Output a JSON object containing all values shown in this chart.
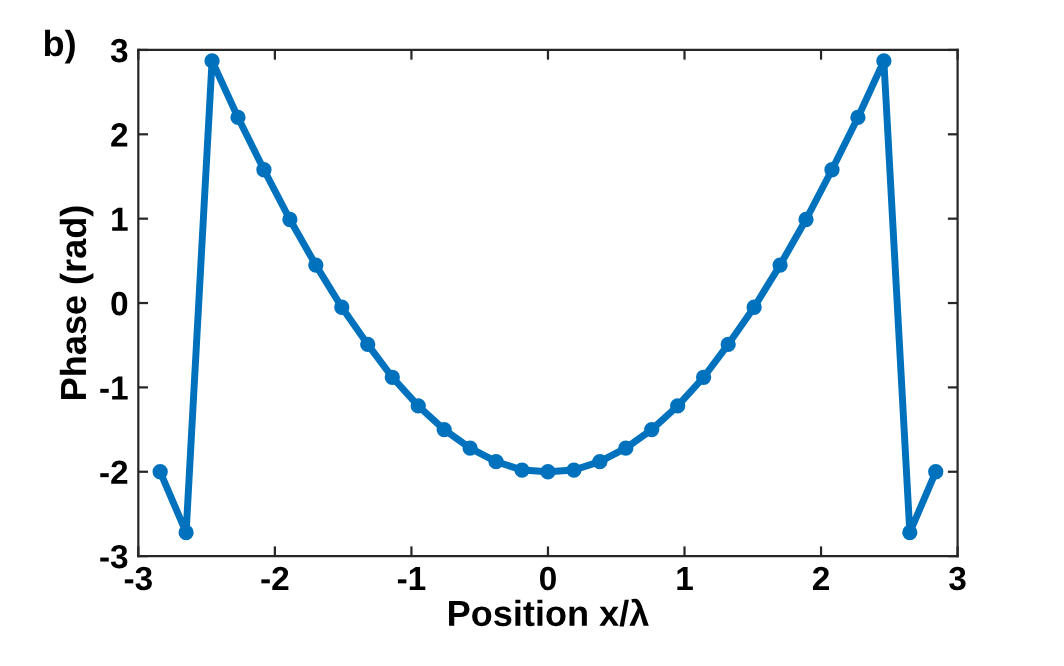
{
  "chart_data": {
    "type": "line",
    "xlabel": "Position x/λ",
    "ylabel": "Phase (rad)",
    "annotations": [
      "b)"
    ],
    "x": [
      -2.84,
      -2.65,
      -2.46,
      -2.27,
      -2.08,
      -1.89,
      -1.7,
      -1.51,
      -1.32,
      -1.14,
      -0.95,
      -0.76,
      -0.57,
      -0.38,
      -0.19,
      0,
      0.19,
      0.38,
      0.57,
      0.76,
      0.95,
      1.14,
      1.32,
      1.51,
      1.7,
      1.89,
      2.08,
      2.27,
      2.46,
      2.65,
      2.84
    ],
    "series": [
      {
        "color": "#0072bd",
        "values": [
          -2.0,
          -2.72,
          2.87,
          2.2,
          1.58,
          0.99,
          0.45,
          -0.05,
          -0.49,
          -0.88,
          -1.22,
          -1.5,
          -1.72,
          -1.88,
          -1.98,
          -2.0,
          -1.98,
          -1.88,
          -1.72,
          -1.5,
          -1.22,
          -0.88,
          -0.49,
          -0.05,
          0.45,
          0.99,
          1.58,
          2.2,
          2.87,
          -2.72,
          -2.0
        ]
      }
    ],
    "xlim": [
      -3,
      3
    ],
    "ylim": [
      -3,
      3
    ],
    "xticks": [
      -3,
      -2,
      -1,
      0,
      1,
      2,
      3
    ],
    "yticks": [
      -3,
      -2,
      -1,
      0,
      1,
      2,
      3
    ],
    "grid": false,
    "legend": false,
    "marker": "circle",
    "line_style": "solid"
  }
}
